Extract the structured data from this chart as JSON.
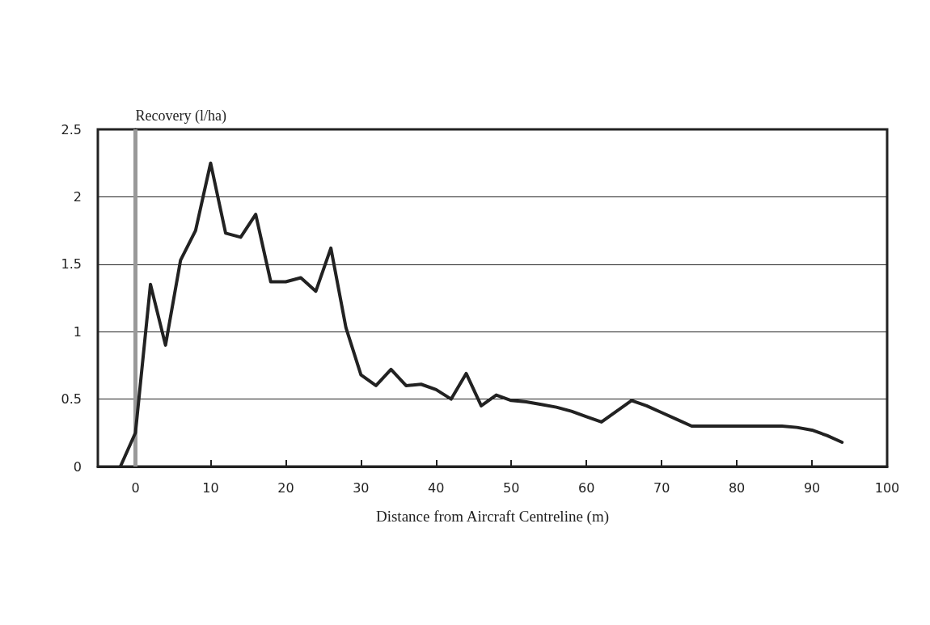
{
  "chart_data": {
    "type": "line",
    "xlabel": "Distance from Aircraft Centreline (m)",
    "ylabel": "Recovery (l/ha)",
    "x": [
      -2,
      0,
      2,
      4,
      6,
      8,
      10,
      12,
      14,
      16,
      18,
      20,
      22,
      24,
      26,
      28,
      30,
      32,
      34,
      36,
      38,
      40,
      42,
      44,
      46,
      48,
      50,
      52,
      54,
      56,
      58,
      60,
      62,
      64,
      66,
      68,
      70,
      72,
      74,
      76,
      78,
      80,
      82,
      84,
      86,
      88,
      90,
      92,
      94
    ],
    "series": [
      {
        "color": "#222222",
        "values": [
          0,
          0.25,
          1.35,
          0.9,
          1.53,
          1.75,
          2.25,
          1.73,
          1.7,
          1.87,
          1.37,
          1.37,
          1.4,
          1.3,
          1.62,
          1.03,
          0.68,
          0.6,
          0.72,
          0.6,
          0.61,
          0.57,
          0.5,
          0.69,
          0.45,
          0.53,
          0.49,
          0.48,
          0.46,
          0.44,
          0.41,
          0.37,
          0.33,
          0.41,
          0.49,
          0.45,
          0.4,
          0.35,
          0.3,
          0.3,
          0.3,
          0.3,
          0.3,
          0.3,
          0.3,
          0.29,
          0.27,
          0.23,
          0.18
        ]
      }
    ],
    "xlim": [
      -5,
      100
    ],
    "xticks": [
      0,
      10,
      20,
      30,
      40,
      50,
      60,
      70,
      80,
      90,
      100
    ],
    "ylim": [
      0,
      2.5
    ],
    "yticks": [
      0,
      0.5,
      1,
      1.5,
      2,
      2.5
    ],
    "grid": "y",
    "marker": "none",
    "line_style": "solid",
    "ref_lines": [
      {
        "axis": "x",
        "value": 0,
        "color": "#999999"
      }
    ]
  }
}
